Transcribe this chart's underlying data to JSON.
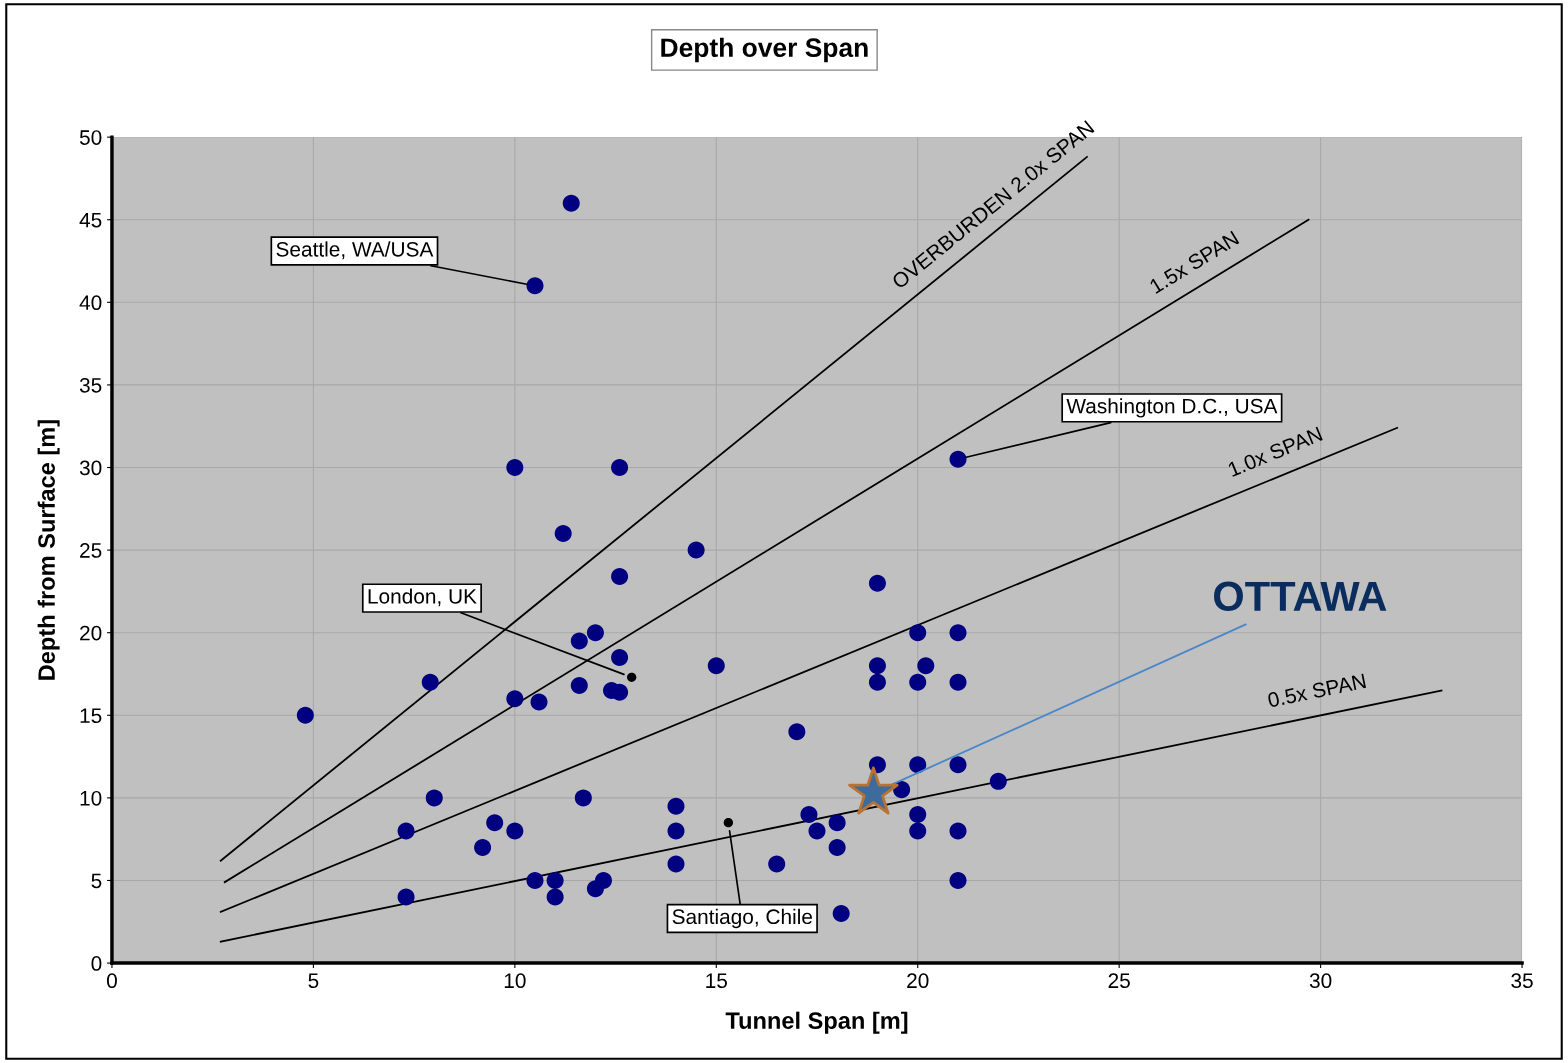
{
  "chart_data": {
    "type": "scatter",
    "title": "Depth over Span",
    "xlabel": "Tunnel Span [m]",
    "ylabel": "Depth from Surface [m]",
    "xlim": [
      0,
      35
    ],
    "ylim": [
      0,
      50
    ],
    "xticks": [
      0,
      5,
      10,
      15,
      20,
      25,
      30,
      35
    ],
    "yticks": [
      0,
      5,
      10,
      15,
      20,
      25,
      30,
      35,
      40,
      45,
      50
    ],
    "grid": true,
    "marker": "circle",
    "series": [
      {
        "color": "#000080",
        "x": [
          4.8,
          7.3,
          7.3,
          7.9,
          8.0,
          9.2,
          9.5,
          10.0,
          10.0,
          10.0,
          10.5,
          10.5,
          10.6,
          11.0,
          11.0,
          11.2,
          11.4,
          11.6,
          11.6,
          11.7,
          12.0,
          12.0,
          12.2,
          12.4,
          12.6,
          12.6,
          12.6,
          12.6,
          14.5,
          14.0,
          14.0,
          14.0,
          15.0,
          16.5,
          17.0,
          17.3,
          17.5,
          18.0,
          18.0,
          18.1,
          19.0,
          19.0,
          19.0,
          19.0,
          19.6,
          20.0,
          20.0,
          20.2,
          20.0,
          20.0,
          20.0,
          21.0,
          21.0,
          21.0,
          21.0,
          21.0,
          21.0,
          22.0
        ],
        "values": [
          15.0,
          8.0,
          4.0,
          17.0,
          10.0,
          7.0,
          8.5,
          8.0,
          30.0,
          16.0,
          41.0,
          5.0,
          15.8,
          5.0,
          4.0,
          26.0,
          46.0,
          19.5,
          16.8,
          10.0,
          20.0,
          4.5,
          5.0,
          16.5,
          18.5,
          16.4,
          23.4,
          30.0,
          25.0,
          9.5,
          8.0,
          6.0,
          18.0,
          6.0,
          14.0,
          9.0,
          8.0,
          8.5,
          7.0,
          3.0,
          23.0,
          18.0,
          17.0,
          12.0,
          10.5,
          20.0,
          17.0,
          18.0,
          12.0,
          9.0,
          8.0,
          30.5,
          20.0,
          17.0,
          12.0,
          8.0,
          5.0,
          11.0
        ]
      },
      {
        "type": "scatter",
        "color": "#3d6b9e",
        "marker": "star",
        "x": [
          18.9
        ],
        "values": [
          10.3
        ]
      },
      {
        "type": "scatter",
        "color": "#000000",
        "marker": "circle",
        "x": [
          12.9,
          15.3
        ],
        "values": [
          17.3,
          8.5
        ]
      },
      {
        "type": "line",
        "name": "OVERBURDEN 2.0x SPAN",
        "color": "#000000",
        "marker": "none",
        "line_style": "solid",
        "x": [
          2.7,
          24.2
        ],
        "values": [
          6.2,
          48.8
        ]
      },
      {
        "type": "line",
        "name": "1.5x SPAN",
        "color": "#000000",
        "marker": "none",
        "line_style": "solid",
        "x": [
          2.8,
          29.7
        ],
        "values": [
          4.9,
          45.0
        ]
      },
      {
        "type": "line",
        "name": "1.0x SPAN",
        "color": "#000000",
        "marker": "none",
        "line_style": "solid",
        "x": [
          2.7,
          31.9
        ],
        "values": [
          3.1,
          32.4
        ]
      },
      {
        "type": "line",
        "name": "0.5x SPAN",
        "color": "#000000",
        "marker": "none",
        "line_style": "solid",
        "x": [
          2.7,
          33.0
        ],
        "values": [
          1.3,
          16.5
        ]
      }
    ],
    "annotations": [
      {
        "text": "Seattle, WA/USA",
        "x": 10.5,
        "y": 41.0
      },
      {
        "text": "Washington D.C., USA",
        "x": 21.0,
        "y": 30.5
      },
      {
        "text": "London, UK",
        "x": 12.9,
        "y": 17.3
      },
      {
        "text": "Santiago, Chile",
        "x": 15.3,
        "y": 8.5
      },
      {
        "text": "OTTAWA",
        "x": 18.9,
        "y": 10.3
      }
    ]
  }
}
